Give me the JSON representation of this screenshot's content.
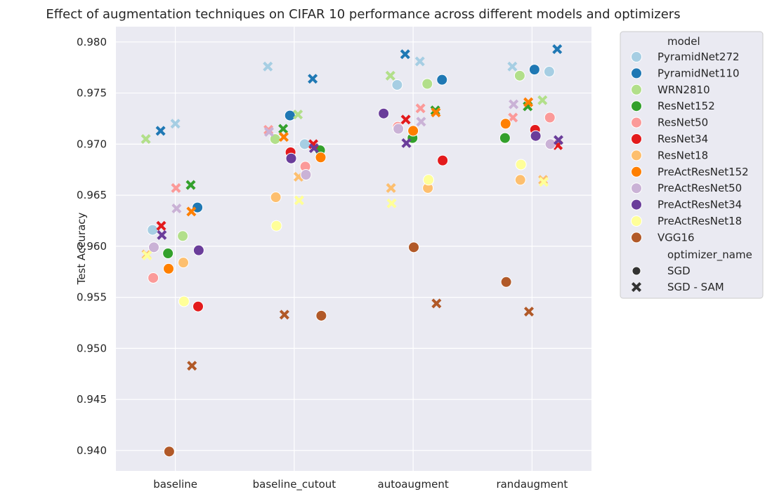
{
  "chart_data": {
    "type": "scatter",
    "title": "Effect of augmentation techniques on CIFAR 10 performance across different models and optimizers",
    "xlabel": "",
    "ylabel": "Test Accuracy",
    "categories": [
      "baseline",
      "baseline_cutout",
      "autoaugment",
      "randaugment"
    ],
    "ylim": [
      0.938,
      0.9815
    ],
    "yticks": [
      "0.940",
      "0.945",
      "0.950",
      "0.955",
      "0.960",
      "0.965",
      "0.970",
      "0.975",
      "0.980"
    ],
    "grid": true,
    "legend": {
      "placement": "outside-right",
      "model_title": "model",
      "optimizer_title": "optimizer_name",
      "optimizers": [
        {
          "name": "SGD",
          "marker": "circle"
        },
        {
          "name": "SGD - SAM",
          "marker": "x"
        }
      ]
    },
    "series": [
      {
        "name": "PyramidNet272",
        "color": "#a6cee3",
        "sgd": [
          0.9616,
          0.97,
          0.9758,
          0.9771
        ],
        "sam": [
          0.972,
          0.9776,
          0.9781,
          0.9776
        ]
      },
      {
        "name": "PyramidNet110",
        "color": "#1f78b4",
        "sgd": [
          0.9638,
          0.9728,
          0.9763,
          0.9773
        ],
        "sam": [
          0.9713,
          0.9764,
          0.9788,
          0.9793
        ]
      },
      {
        "name": "WRN2810",
        "color": "#b2df8a",
        "sgd": [
          0.961,
          0.9705,
          0.9759,
          0.9767
        ],
        "sam": [
          0.9705,
          0.9729,
          0.9767,
          0.9743
        ]
      },
      {
        "name": "ResNet152",
        "color": "#33a02c",
        "sgd": [
          0.9593,
          0.9694,
          0.9706,
          0.9706
        ],
        "sam": [
          0.966,
          0.9715,
          0.9733,
          0.9737
        ]
      },
      {
        "name": "ResNet50",
        "color": "#fb9a99",
        "sgd": [
          0.9569,
          0.9678,
          0.9717,
          0.9726
        ],
        "sam": [
          0.9657,
          0.9714,
          0.9735,
          0.9726
        ]
      },
      {
        "name": "ResNet34",
        "color": "#e31a1c",
        "sgd": [
          0.9541,
          0.9692,
          0.9684,
          0.9714
        ],
        "sam": [
          0.962,
          0.97,
          0.9724,
          0.9699
        ]
      },
      {
        "name": "ResNet18",
        "color": "#fdbf6f",
        "sgd": [
          0.9584,
          0.9648,
          0.9657,
          0.9665
        ],
        "sam": [
          0.9592,
          0.9668,
          0.9657,
          0.9665
        ]
      },
      {
        "name": "PreActResNet152",
        "color": "#ff7f00",
        "sgd": [
          0.9578,
          0.9687,
          0.9713,
          0.972
        ],
        "sam": [
          0.9634,
          0.9707,
          0.9731,
          0.9741
        ]
      },
      {
        "name": "PreActResNet50",
        "color": "#cab2d6",
        "sgd": [
          0.9599,
          0.967,
          0.9715,
          0.97
        ],
        "sam": [
          0.9637,
          0.9712,
          0.9722,
          0.9739
        ]
      },
      {
        "name": "PreActResNet34",
        "color": "#6a3d9a",
        "sgd": [
          0.9596,
          0.9686,
          0.973,
          0.9708
        ],
        "sam": [
          0.9611,
          0.9696,
          0.9701,
          0.9704
        ]
      },
      {
        "name": "PreActResNet18",
        "color": "#ffff99",
        "sgd": [
          0.9546,
          0.962,
          0.9665,
          0.968
        ],
        "sam": [
          0.9591,
          0.9645,
          0.9642,
          0.9663
        ]
      },
      {
        "name": "VGG16",
        "color": "#b15928",
        "sgd": [
          0.9399,
          0.9532,
          0.9599,
          0.9565
        ],
        "sam": [
          0.9483,
          0.9533,
          0.9544,
          0.9536
        ]
      }
    ]
  }
}
